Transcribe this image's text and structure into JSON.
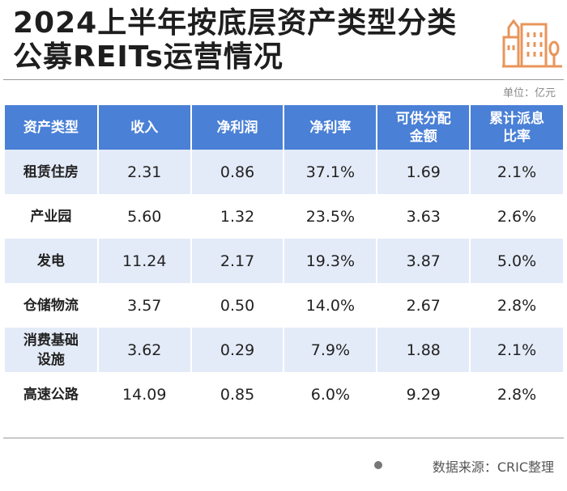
{
  "title_line1": "2024上半年按底层资产类型分类",
  "title_line2": "公募REITs运营情况",
  "unit": "单位：亿元",
  "source": "数据来源：CRIC整理",
  "colors": {
    "header": "#4a80d6",
    "row_alt": "#e4ebf8",
    "logo": "#e8955a"
  },
  "chart_data": {
    "type": "table",
    "columns": [
      "资产类型",
      "收入",
      "净利润",
      "净利率",
      "可供分配金额",
      "累计派息比率"
    ],
    "rows": [
      [
        "租赁住房",
        "2.31",
        "0.86",
        "37.1%",
        "1.69",
        "2.1%"
      ],
      [
        "产业园",
        "5.60",
        "1.32",
        "23.5%",
        "3.63",
        "2.6%"
      ],
      [
        "发电",
        "11.24",
        "2.17",
        "19.3%",
        "3.87",
        "5.0%"
      ],
      [
        "仓储物流",
        "3.57",
        "0.50",
        "14.0%",
        "2.67",
        "2.8%"
      ],
      [
        "消费基础设施",
        "3.62",
        "0.29",
        "7.9%",
        "1.88",
        "2.1%"
      ],
      [
        "高速公路",
        "14.09",
        "0.85",
        "6.0%",
        "9.29",
        "2.8%"
      ]
    ]
  }
}
